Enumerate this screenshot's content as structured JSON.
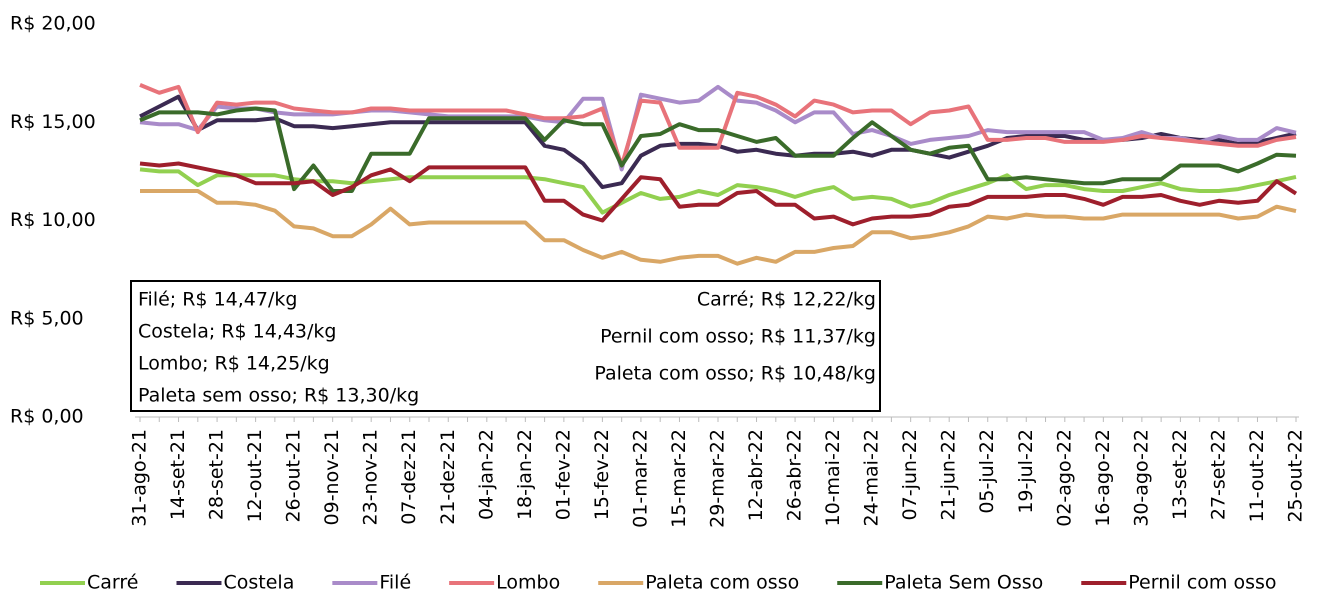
{
  "chart_data": {
    "type": "line",
    "categories": [
      "31-ago-21",
      null,
      "14-set-21",
      null,
      "28-set-21",
      null,
      "12-out-21",
      null,
      "26-out-21",
      null,
      "09-nov-21",
      null,
      "23-nov-21",
      null,
      "07-dez-21",
      null,
      "21-dez-21",
      null,
      "04-jan-22",
      null,
      "18-jan-22",
      null,
      "01-fev-22",
      null,
      "15-fev-22",
      null,
      "01-mar-22",
      null,
      "15-mar-22",
      null,
      "29-mar-22",
      null,
      "12-abr-22",
      null,
      "26-abr-22",
      null,
      "10-mai-22",
      null,
      "24-mai-22",
      null,
      "07-jun-22",
      null,
      "21-jun-22",
      null,
      "05-jul-22",
      null,
      "19-jul-22",
      null,
      "02-ago-22",
      null,
      "16-ago-22",
      null,
      "30-ago-22",
      null,
      "13-set-22",
      null,
      "27-set-22",
      null,
      "11-out-22",
      null,
      "25-out-22"
    ],
    "series": [
      {
        "name": "Carré",
        "color": "#92d050",
        "values": [
          12.6,
          12.5,
          12.5,
          11.8,
          12.3,
          12.3,
          12.3,
          12.3,
          12.1,
          12.0,
          12.0,
          11.9,
          12.0,
          12.1,
          12.2,
          12.2,
          12.2,
          12.2,
          12.2,
          12.2,
          12.2,
          12.1,
          11.9,
          11.7,
          10.4,
          10.9,
          11.4,
          11.1,
          11.2,
          11.5,
          11.3,
          11.8,
          11.7,
          11.5,
          11.2,
          11.5,
          11.7,
          11.1,
          11.2,
          11.1,
          10.7,
          10.9,
          11.3,
          11.6,
          11.9,
          12.3,
          11.6,
          11.8,
          11.8,
          11.6,
          11.5,
          11.5,
          11.7,
          11.9,
          11.6,
          11.5,
          11.5,
          11.6,
          11.8,
          12.0,
          12.22
        ]
      },
      {
        "name": "Costela",
        "color": "#3b2a52",
        "values": [
          15.3,
          15.8,
          16.3,
          14.6,
          15.1,
          15.1,
          15.1,
          15.2,
          14.8,
          14.8,
          14.7,
          14.8,
          14.9,
          15.0,
          15.0,
          15.0,
          15.0,
          15.0,
          15.0,
          15.0,
          15.0,
          13.8,
          13.6,
          12.9,
          11.7,
          11.9,
          13.3,
          13.8,
          13.9,
          13.9,
          13.8,
          13.5,
          13.6,
          13.4,
          13.3,
          13.4,
          13.4,
          13.5,
          13.3,
          13.6,
          13.6,
          13.4,
          13.2,
          13.5,
          13.8,
          14.2,
          14.3,
          14.3,
          14.3,
          14.1,
          14.1,
          14.1,
          14.2,
          14.4,
          14.2,
          14.1,
          14.1,
          13.9,
          14.0,
          14.2,
          14.43
        ]
      },
      {
        "name": "Filé",
        "color": "#a98bc9",
        "values": [
          15.0,
          14.9,
          14.9,
          14.6,
          15.8,
          15.7,
          15.7,
          15.5,
          15.4,
          15.4,
          15.4,
          15.5,
          15.6,
          15.6,
          15.5,
          15.4,
          15.3,
          15.3,
          15.3,
          15.3,
          15.3,
          15.1,
          15.0,
          16.2,
          16.2,
          12.6,
          16.4,
          16.2,
          16.0,
          16.1,
          16.8,
          16.1,
          16.0,
          15.6,
          15.0,
          15.5,
          15.5,
          14.4,
          14.6,
          14.3,
          13.9,
          14.1,
          14.2,
          14.3,
          14.6,
          14.5,
          14.5,
          14.5,
          14.5,
          14.5,
          14.1,
          14.2,
          14.5,
          14.2,
          14.2,
          14.0,
          14.3,
          14.1,
          14.1,
          14.7,
          14.47
        ]
      },
      {
        "name": "Lombo",
        "color": "#e8737a",
        "values": [
          16.9,
          16.5,
          16.8,
          14.5,
          16.0,
          15.9,
          16.0,
          16.0,
          15.7,
          15.6,
          15.5,
          15.5,
          15.7,
          15.7,
          15.6,
          15.6,
          15.6,
          15.6,
          15.6,
          15.6,
          15.4,
          15.2,
          15.2,
          15.3,
          15.7,
          12.8,
          16.1,
          16.0,
          13.7,
          13.7,
          13.7,
          16.5,
          16.3,
          15.9,
          15.3,
          16.1,
          15.9,
          15.5,
          15.6,
          15.6,
          14.9,
          15.5,
          15.6,
          15.8,
          14.1,
          14.1,
          14.2,
          14.2,
          14.0,
          14.0,
          14.0,
          14.1,
          14.3,
          14.2,
          14.1,
          14.0,
          13.9,
          13.8,
          13.8,
          14.1,
          14.25
        ]
      },
      {
        "name": "Paleta com osso",
        "color": "#d9a766",
        "values": [
          11.5,
          11.5,
          11.5,
          11.5,
          10.9,
          10.9,
          10.8,
          10.5,
          9.7,
          9.6,
          9.2,
          9.2,
          9.8,
          10.6,
          9.8,
          9.9,
          9.9,
          9.9,
          9.9,
          9.9,
          9.9,
          9.0,
          9.0,
          8.5,
          8.1,
          8.4,
          8.0,
          7.9,
          8.1,
          8.2,
          8.2,
          7.8,
          8.1,
          7.9,
          8.4,
          8.4,
          8.6,
          8.7,
          9.4,
          9.4,
          9.1,
          9.2,
          9.4,
          9.7,
          10.2,
          10.1,
          10.3,
          10.2,
          10.2,
          10.1,
          10.1,
          10.3,
          10.3,
          10.3,
          10.3,
          10.3,
          10.3,
          10.1,
          10.2,
          10.7,
          10.48
        ]
      },
      {
        "name": "Paleta Sem Osso",
        "color": "#3a6b2a",
        "values": [
          15.1,
          15.5,
          15.5,
          15.5,
          15.4,
          15.6,
          15.7,
          15.6,
          11.6,
          12.8,
          11.5,
          11.5,
          13.4,
          13.4,
          13.4,
          15.2,
          15.2,
          15.2,
          15.2,
          15.2,
          15.2,
          14.1,
          15.1,
          14.9,
          14.9,
          12.8,
          14.3,
          14.4,
          14.9,
          14.6,
          14.6,
          14.3,
          14.0,
          14.2,
          13.3,
          13.3,
          13.3,
          14.2,
          15.0,
          14.3,
          13.6,
          13.4,
          13.7,
          13.8,
          12.1,
          12.1,
          12.2,
          12.1,
          12.0,
          11.9,
          11.9,
          12.1,
          12.1,
          12.1,
          12.8,
          12.8,
          12.8,
          12.5,
          12.9,
          13.35,
          13.3
        ]
      },
      {
        "name": "Pernil com osso",
        "color": "#9e1f2c",
        "values": [
          12.9,
          12.8,
          12.9,
          12.7,
          12.5,
          12.3,
          11.9,
          11.9,
          11.9,
          12.0,
          11.3,
          11.7,
          12.3,
          12.6,
          12.0,
          12.7,
          12.7,
          12.7,
          12.7,
          12.7,
          12.7,
          11.0,
          11.0,
          10.3,
          10.0,
          11.1,
          12.2,
          12.1,
          10.7,
          10.8,
          10.8,
          11.4,
          11.5,
          10.8,
          10.8,
          10.1,
          10.2,
          9.8,
          10.1,
          10.2,
          10.2,
          10.3,
          10.7,
          10.8,
          11.2,
          11.2,
          11.2,
          11.3,
          11.3,
          11.1,
          10.8,
          11.2,
          11.2,
          11.3,
          11.0,
          10.8,
          11.0,
          10.9,
          11.0,
          12.0,
          11.37
        ]
      }
    ],
    "ylim": [
      0,
      20
    ],
    "yticks": [
      {
        "value": 0,
        "label": "R$ 0,00"
      },
      {
        "value": 5,
        "label": "R$ 5,00"
      },
      {
        "value": 10,
        "label": "R$ 10,00"
      },
      {
        "value": 15,
        "label": "R$ 15,00"
      },
      {
        "value": 20,
        "label": "R$ 20,00"
      }
    ],
    "grid": false,
    "legend": "bottom",
    "annotation_box": {
      "left": [
        "Filé; R$ 14,47/kg",
        "Costela; R$ 14,43/kg",
        "Lombo; R$ 14,25/kg",
        "Paleta sem osso; R$ 13,30/kg"
      ],
      "right": [
        "Carré; R$ 12,22/kg",
        "Pernil com osso; R$ 11,37/kg",
        "Paleta com osso; R$ 10,48/kg"
      ]
    }
  }
}
